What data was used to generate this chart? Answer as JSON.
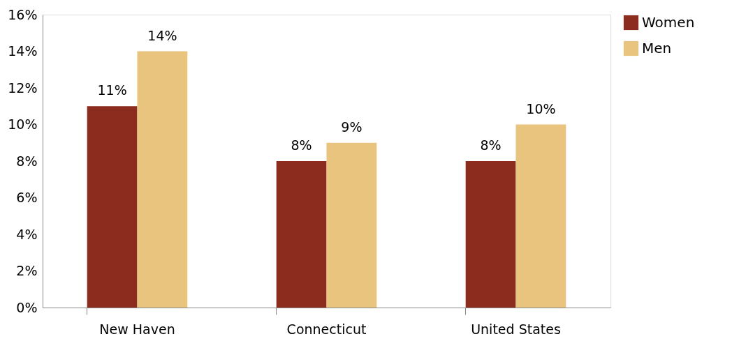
{
  "chart_data": {
    "type": "bar",
    "categories": [
      "New Haven",
      "Connecticut",
      "United States"
    ],
    "series": [
      {
        "name": "Women",
        "color": "#8b2c1f",
        "values": [
          11,
          8,
          8
        ],
        "value_labels": [
          "11%",
          "8%",
          "8%"
        ]
      },
      {
        "name": "Men",
        "color": "#e8c47f",
        "values": [
          14,
          9,
          10
        ],
        "value_labels": [
          "14%",
          "9%",
          "10%"
        ]
      }
    ],
    "ylim": [
      0,
      16
    ],
    "yticks": [
      {
        "value": 0,
        "label": "0%"
      },
      {
        "value": 2,
        "label": "2%"
      },
      {
        "value": 4,
        "label": "4%"
      },
      {
        "value": 6,
        "label": "6%"
      },
      {
        "value": 8,
        "label": "8%"
      },
      {
        "value": 10,
        "label": "10%"
      },
      {
        "value": 12,
        "label": "12%"
      },
      {
        "value": 14,
        "label": "14%"
      },
      {
        "value": 16,
        "label": "16%"
      }
    ],
    "grid": false,
    "legend": "right"
  }
}
